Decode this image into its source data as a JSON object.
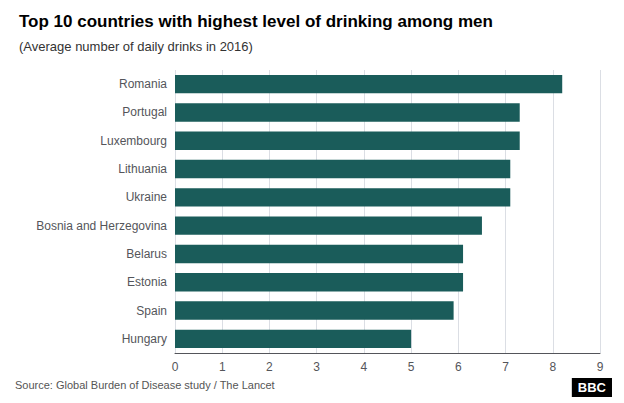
{
  "chart_data": {
    "type": "bar",
    "orientation": "horizontal",
    "title": "Top 10 countries with highest level of drinking among men",
    "subtitle": "(Average number of daily drinks in 2016)",
    "categories": [
      "Romania",
      "Portugal",
      "Luxembourg",
      "Lithuania",
      "Ukraine",
      "Bosnia and Herzegovina",
      "Belarus",
      "Estonia",
      "Spain",
      "Hungary"
    ],
    "values": [
      8.2,
      7.3,
      7.3,
      7.1,
      7.1,
      6.5,
      6.1,
      6.1,
      5.9,
      5.0
    ],
    "color": "#1a5c5a",
    "xlim": [
      0,
      9
    ],
    "xticks": [
      0,
      1,
      2,
      3,
      4,
      5,
      6,
      7,
      8,
      9
    ],
    "grid": true,
    "annotations": [
      "Source: Global Burden of Disease study / The Lancet",
      "BBC"
    ]
  }
}
